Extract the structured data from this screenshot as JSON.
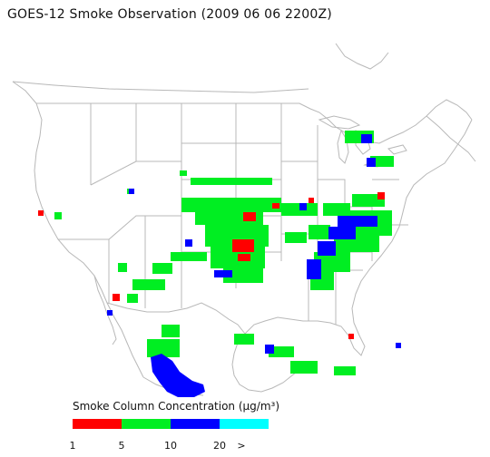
{
  "title": "GOES-12 Smoke Observation (2009 06 06  2200Z)",
  "legend": {
    "title": "Smoke Column Concentration (µg/m³)",
    "bins": [
      {
        "color": "#ff0000"
      },
      {
        "color": "#00ee22"
      },
      {
        "color": "#0000ff"
      },
      {
        "color": "#00ffff"
      }
    ],
    "ticks": [
      "1",
      "5",
      "10",
      "20",
      ">"
    ]
  },
  "colors": {
    "low": "#ff0000",
    "medium": "#00ee22",
    "high": "#0000ff",
    "very_high": "#00ffff",
    "boundary": "#b8b8b8",
    "background": "#ffffff"
  }
}
